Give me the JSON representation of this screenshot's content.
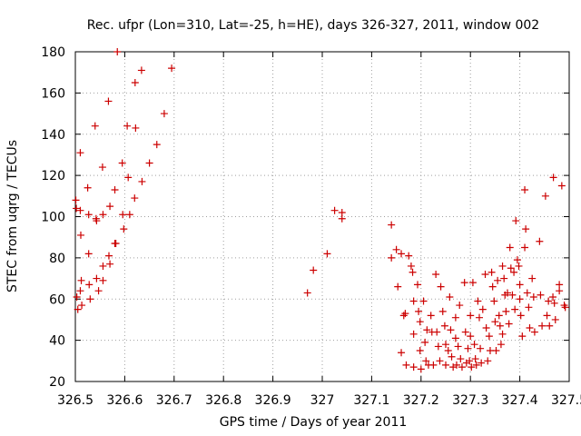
{
  "chart_data": {
    "type": "scatter",
    "title": "Rec. ufpr (Lon=310, Lat=-25, h=HE), days 326-327, 2011, window 002",
    "xlabel": "GPS time / Days of year 2011",
    "ylabel": "STEC from uqrg / TECUs",
    "xlim": [
      326.5,
      327.5
    ],
    "ylim": [
      20,
      180
    ],
    "x_ticks": [
      326.5,
      326.6,
      326.7,
      326.8,
      326.9,
      327.0,
      327.1,
      327.2,
      327.3,
      327.4,
      327.5
    ],
    "x_tick_labels": [
      "326.5",
      "326.6",
      "326.7",
      "326.8",
      "326.9",
      "327",
      "327.1",
      "327.2",
      "327.3",
      "327.4",
      "327.5"
    ],
    "y_ticks": [
      20,
      40,
      60,
      80,
      100,
      120,
      140,
      160,
      180
    ],
    "y_tick_labels": [
      "20",
      "40",
      "60",
      "80",
      "100",
      "120",
      "140",
      "160",
      "180"
    ],
    "grid": true,
    "marker": "plus",
    "color": "#cc0000",
    "points": [
      [
        326.501,
        108
      ],
      [
        326.502,
        104
      ],
      [
        326.503,
        61
      ],
      [
        326.505,
        55
      ],
      [
        326.51,
        131
      ],
      [
        326.51,
        103
      ],
      [
        326.511,
        91
      ],
      [
        326.512,
        69
      ],
      [
        326.51,
        64
      ],
      [
        326.513,
        57
      ],
      [
        326.525,
        114
      ],
      [
        326.527,
        101
      ],
      [
        326.527,
        82
      ],
      [
        326.528,
        67
      ],
      [
        326.53,
        60
      ],
      [
        326.54,
        144
      ],
      [
        326.542,
        99
      ],
      [
        326.543,
        98
      ],
      [
        326.543,
        70
      ],
      [
        326.547,
        64
      ],
      [
        326.555,
        124
      ],
      [
        326.556,
        101
      ],
      [
        326.556,
        76
      ],
      [
        326.556,
        69
      ],
      [
        326.567,
        156
      ],
      [
        326.57,
        105
      ],
      [
        326.568,
        81
      ],
      [
        326.57,
        77
      ],
      [
        326.58,
        113
      ],
      [
        326.58,
        87
      ],
      [
        326.582,
        87
      ],
      [
        326.585,
        180
      ],
      [
        326.595,
        126
      ],
      [
        326.596,
        101
      ],
      [
        326.598,
        94
      ],
      [
        326.605,
        144
      ],
      [
        326.607,
        119
      ],
      [
        326.61,
        101
      ],
      [
        326.621,
        165
      ],
      [
        326.622,
        143
      ],
      [
        326.62,
        109
      ],
      [
        326.634,
        171
      ],
      [
        326.635,
        117
      ],
      [
        326.65,
        126
      ],
      [
        326.665,
        135
      ],
      [
        326.68,
        150
      ],
      [
        326.695,
        172
      ],
      [
        326.97,
        63
      ],
      [
        326.982,
        74
      ],
      [
        327.01,
        82
      ],
      [
        327.025,
        103
      ],
      [
        327.04,
        102
      ],
      [
        327.04,
        99
      ],
      [
        327.14,
        96
      ],
      [
        327.14,
        80
      ],
      [
        327.15,
        84
      ],
      [
        327.153,
        66
      ],
      [
        327.16,
        82
      ],
      [
        327.16,
        34
      ],
      [
        327.165,
        52
      ],
      [
        327.168,
        53
      ],
      [
        327.17,
        28
      ],
      [
        327.175,
        81
      ],
      [
        327.18,
        76
      ],
      [
        327.183,
        73
      ],
      [
        327.185,
        59
      ],
      [
        327.185,
        43
      ],
      [
        327.185,
        27
      ],
      [
        327.193,
        67
      ],
      [
        327.195,
        54
      ],
      [
        327.198,
        49
      ],
      [
        327.198,
        35
      ],
      [
        327.2,
        26
      ],
      [
        327.205,
        59
      ],
      [
        327.208,
        39
      ],
      [
        327.21,
        30
      ],
      [
        327.212,
        45
      ],
      [
        327.215,
        28
      ],
      [
        327.22,
        52
      ],
      [
        327.222,
        44
      ],
      [
        327.225,
        28
      ],
      [
        327.23,
        72
      ],
      [
        327.232,
        44
      ],
      [
        327.235,
        37
      ],
      [
        327.238,
        30
      ],
      [
        327.24,
        66
      ],
      [
        327.244,
        54
      ],
      [
        327.248,
        47
      ],
      [
        327.25,
        38
      ],
      [
        327.25,
        28
      ],
      [
        327.255,
        35
      ],
      [
        327.258,
        61
      ],
      [
        327.26,
        45
      ],
      [
        327.262,
        32
      ],
      [
        327.265,
        27
      ],
      [
        327.27,
        51
      ],
      [
        327.27,
        41
      ],
      [
        327.272,
        28
      ],
      [
        327.275,
        37
      ],
      [
        327.278,
        57
      ],
      [
        327.28,
        31
      ],
      [
        327.283,
        27
      ],
      [
        327.288,
        68
      ],
      [
        327.29,
        44
      ],
      [
        327.292,
        29
      ],
      [
        327.295,
        36
      ],
      [
        327.298,
        30
      ],
      [
        327.3,
        52
      ],
      [
        327.3,
        42
      ],
      [
        327.302,
        27
      ],
      [
        327.305,
        68
      ],
      [
        327.308,
        38
      ],
      [
        327.31,
        31
      ],
      [
        327.312,
        28
      ],
      [
        327.315,
        59
      ],
      [
        327.318,
        51
      ],
      [
        327.32,
        36
      ],
      [
        327.322,
        29
      ],
      [
        327.325,
        55
      ],
      [
        327.33,
        72
      ],
      [
        327.332,
        46
      ],
      [
        327.335,
        30
      ],
      [
        327.338,
        42
      ],
      [
        327.34,
        35
      ],
      [
        327.343,
        73
      ],
      [
        327.345,
        66
      ],
      [
        327.348,
        59
      ],
      [
        327.35,
        49
      ],
      [
        327.352,
        35
      ],
      [
        327.355,
        69
      ],
      [
        327.358,
        52
      ],
      [
        327.36,
        47
      ],
      [
        327.362,
        38
      ],
      [
        327.365,
        76
      ],
      [
        327.365,
        43
      ],
      [
        327.368,
        70
      ],
      [
        327.37,
        62
      ],
      [
        327.372,
        54
      ],
      [
        327.375,
        63
      ],
      [
        327.378,
        48
      ],
      [
        327.38,
        85
      ],
      [
        327.382,
        75
      ],
      [
        327.385,
        62
      ],
      [
        327.388,
        73
      ],
      [
        327.39,
        55
      ],
      [
        327.392,
        98
      ],
      [
        327.395,
        79
      ],
      [
        327.398,
        76
      ],
      [
        327.4,
        67
      ],
      [
        327.4,
        60
      ],
      [
        327.402,
        52
      ],
      [
        327.405,
        42
      ],
      [
        327.41,
        85
      ],
      [
        327.41,
        113
      ],
      [
        327.412,
        94
      ],
      [
        327.415,
        63
      ],
      [
        327.418,
        56
      ],
      [
        327.42,
        46
      ],
      [
        327.425,
        70
      ],
      [
        327.428,
        61
      ],
      [
        327.43,
        44
      ],
      [
        327.44,
        88
      ],
      [
        327.442,
        62
      ],
      [
        327.445,
        47
      ],
      [
        327.452,
        110
      ],
      [
        327.455,
        52
      ],
      [
        327.458,
        59
      ],
      [
        327.46,
        47
      ],
      [
        327.467,
        61
      ],
      [
        327.468,
        119
      ],
      [
        327.47,
        58
      ],
      [
        327.472,
        50
      ],
      [
        327.48,
        67
      ],
      [
        327.48,
        64
      ],
      [
        327.485,
        115
      ],
      [
        327.49,
        57
      ],
      [
        327.492,
        56
      ]
    ]
  }
}
